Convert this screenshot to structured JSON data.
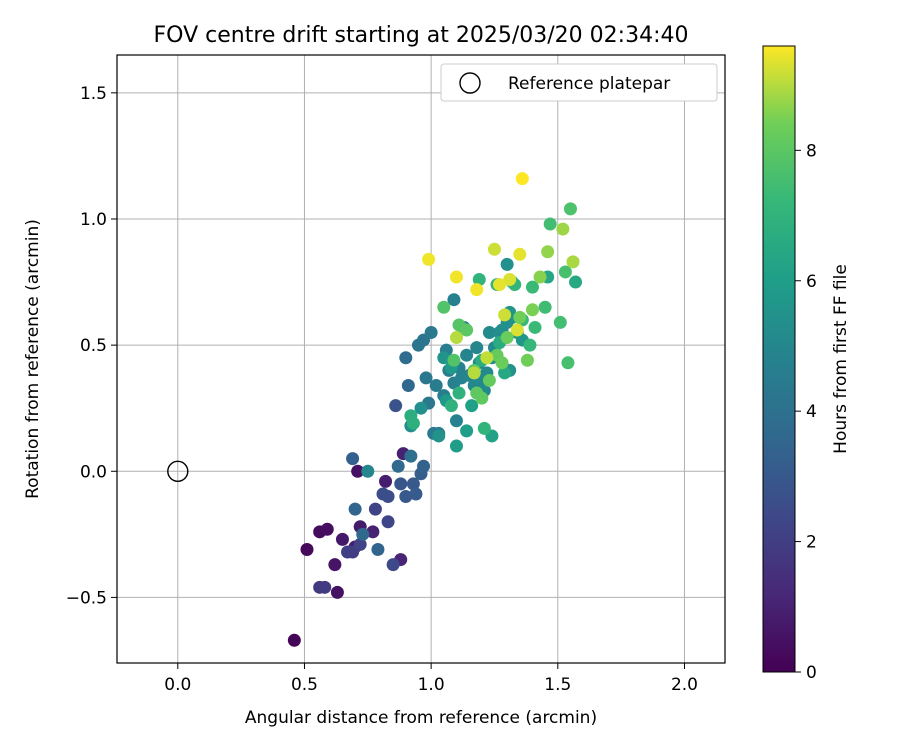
{
  "chart_data": {
    "type": "scatter",
    "title": "FOV centre drift starting at 2025/03/20 02:34:40",
    "xlabel": "Angular distance from reference (arcmin)",
    "ylabel": "Rotation from reference (arcmin)",
    "xlim": [
      -0.24,
      2.16
    ],
    "ylim": [
      -0.76,
      1.65
    ],
    "xticks": [
      0.0,
      0.5,
      1.0,
      1.5,
      2.0
    ],
    "xtick_labels": [
      "0.0",
      "0.5",
      "1.0",
      "1.5",
      "2.0"
    ],
    "yticks": [
      -0.5,
      0.0,
      0.5,
      1.0,
      1.5
    ],
    "ytick_labels": [
      "−0.5",
      "0.0",
      "0.5",
      "1.0",
      "1.5"
    ],
    "grid": true,
    "legend": {
      "position": "top-right",
      "entries": [
        {
          "label": "Reference platepar",
          "marker": "open-circle"
        }
      ]
    },
    "reference_point": {
      "x": 0.0,
      "y": 0.0
    },
    "colorbar": {
      "label": "Hours from first FF file",
      "colormap": "viridis",
      "range": [
        0,
        9.6
      ],
      "ticks": [
        0,
        2,
        4,
        6,
        8
      ],
      "tick_labels": [
        "0",
        "2",
        "4",
        "6",
        "8"
      ]
    },
    "points": [
      {
        "x": 0.46,
        "y": -0.67,
        "c": 0.1
      },
      {
        "x": 0.51,
        "y": -0.31,
        "c": 0.2
      },
      {
        "x": 0.56,
        "y": -0.24,
        "c": 0.3
      },
      {
        "x": 0.59,
        "y": -0.23,
        "c": 0.4
      },
      {
        "x": 0.63,
        "y": -0.48,
        "c": 0.5
      },
      {
        "x": 0.62,
        "y": -0.37,
        "c": 0.6
      },
      {
        "x": 0.65,
        "y": -0.27,
        "c": 0.7
      },
      {
        "x": 0.71,
        "y": 0.0,
        "c": 0.5
      },
      {
        "x": 0.72,
        "y": -0.22,
        "c": 0.8
      },
      {
        "x": 0.7,
        "y": -0.3,
        "c": 0.9
      },
      {
        "x": 0.77,
        "y": -0.24,
        "c": 1.0
      },
      {
        "x": 0.82,
        "y": -0.04,
        "c": 0.9
      },
      {
        "x": 0.88,
        "y": -0.35,
        "c": 1.1
      },
      {
        "x": 0.89,
        "y": 0.07,
        "c": 1.0
      },
      {
        "x": 0.56,
        "y": -0.46,
        "c": 1.8
      },
      {
        "x": 0.58,
        "y": -0.46,
        "c": 1.9
      },
      {
        "x": 0.67,
        "y": -0.32,
        "c": 2.0
      },
      {
        "x": 0.69,
        "y": -0.32,
        "c": 2.0
      },
      {
        "x": 0.72,
        "y": -0.29,
        "c": 2.2
      },
      {
        "x": 0.78,
        "y": -0.15,
        "c": 2.2
      },
      {
        "x": 0.83,
        "y": -0.2,
        "c": 2.3
      },
      {
        "x": 0.85,
        "y": -0.37,
        "c": 2.4
      },
      {
        "x": 0.81,
        "y": -0.09,
        "c": 2.6
      },
      {
        "x": 0.83,
        "y": -0.1,
        "c": 2.6
      },
      {
        "x": 0.86,
        "y": 0.26,
        "c": 2.8
      },
      {
        "x": 0.88,
        "y": -0.05,
        "c": 2.9
      },
      {
        "x": 0.9,
        "y": -0.1,
        "c": 3.0
      },
      {
        "x": 0.93,
        "y": -0.05,
        "c": 3.0
      },
      {
        "x": 0.94,
        "y": -0.09,
        "c": 3.1
      },
      {
        "x": 0.96,
        "y": -0.01,
        "c": 3.2
      },
      {
        "x": 0.69,
        "y": 0.05,
        "c": 3.3
      },
      {
        "x": 0.7,
        "y": -0.15,
        "c": 3.5
      },
      {
        "x": 0.73,
        "y": -0.25,
        "c": 3.6
      },
      {
        "x": 0.79,
        "y": -0.31,
        "c": 3.5
      },
      {
        "x": 0.91,
        "y": 0.34,
        "c": 3.6
      },
      {
        "x": 0.87,
        "y": 0.02,
        "c": 3.7
      },
      {
        "x": 0.9,
        "y": 0.45,
        "c": 3.8
      },
      {
        "x": 0.92,
        "y": 0.06,
        "c": 4.0
      },
      {
        "x": 0.97,
        "y": 0.02,
        "c": 3.4
      },
      {
        "x": 0.95,
        "y": 0.5,
        "c": 4.2
      },
      {
        "x": 0.97,
        "y": 0.52,
        "c": 4.2
      },
      {
        "x": 0.99,
        "y": 0.27,
        "c": 4.3
      },
      {
        "x": 0.98,
        "y": 0.37,
        "c": 4.3
      },
      {
        "x": 1.0,
        "y": 0.55,
        "c": 4.4
      },
      {
        "x": 1.01,
        "y": 0.15,
        "c": 4.4
      },
      {
        "x": 1.02,
        "y": 0.34,
        "c": 4.5
      },
      {
        "x": 1.03,
        "y": 0.15,
        "c": 4.5
      },
      {
        "x": 1.05,
        "y": 0.3,
        "c": 4.6
      },
      {
        "x": 1.06,
        "y": 0.48,
        "c": 4.6
      },
      {
        "x": 1.07,
        "y": 0.4,
        "c": 4.6
      },
      {
        "x": 1.09,
        "y": 0.35,
        "c": 4.7
      },
      {
        "x": 1.09,
        "y": 0.68,
        "c": 4.7
      },
      {
        "x": 1.1,
        "y": 0.2,
        "c": 4.8
      },
      {
        "x": 1.11,
        "y": 0.41,
        "c": 4.8
      },
      {
        "x": 1.12,
        "y": 0.37,
        "c": 4.8
      },
      {
        "x": 1.13,
        "y": 0.57,
        "c": 4.9
      },
      {
        "x": 1.14,
        "y": 0.46,
        "c": 4.9
      },
      {
        "x": 1.15,
        "y": 0.38,
        "c": 4.9
      },
      {
        "x": 1.17,
        "y": 0.34,
        "c": 5.0
      },
      {
        "x": 1.18,
        "y": 0.49,
        "c": 5.0
      },
      {
        "x": 1.19,
        "y": 0.43,
        "c": 5.0
      },
      {
        "x": 1.2,
        "y": 0.36,
        "c": 5.1
      },
      {
        "x": 1.21,
        "y": 0.32,
        "c": 5.1
      },
      {
        "x": 1.22,
        "y": 0.39,
        "c": 5.1
      },
      {
        "x": 1.23,
        "y": 0.55,
        "c": 5.2
      },
      {
        "x": 1.24,
        "y": 0.45,
        "c": 5.2
      },
      {
        "x": 1.25,
        "y": 0.49,
        "c": 5.2
      },
      {
        "x": 1.27,
        "y": 0.55,
        "c": 5.3
      },
      {
        "x": 1.28,
        "y": 0.56,
        "c": 5.3
      },
      {
        "x": 1.3,
        "y": 0.59,
        "c": 5.4
      },
      {
        "x": 1.3,
        "y": 0.82,
        "c": 5.4
      },
      {
        "x": 1.31,
        "y": 0.4,
        "c": 5.5
      },
      {
        "x": 1.32,
        "y": 0.61,
        "c": 5.5
      },
      {
        "x": 1.31,
        "y": 0.63,
        "c": 5.6
      },
      {
        "x": 1.34,
        "y": 0.55,
        "c": 5.6
      },
      {
        "x": 1.36,
        "y": 0.52,
        "c": 5.7
      },
      {
        "x": 0.75,
        "y": 0.0,
        "c": 5.0
      },
      {
        "x": 0.92,
        "y": 0.18,
        "c": 5.3
      },
      {
        "x": 0.96,
        "y": 0.25,
        "c": 5.4
      },
      {
        "x": 1.03,
        "y": 0.14,
        "c": 5.5
      },
      {
        "x": 1.05,
        "y": 0.45,
        "c": 5.6
      },
      {
        "x": 1.06,
        "y": 0.28,
        "c": 5.8
      },
      {
        "x": 1.08,
        "y": 0.41,
        "c": 5.8
      },
      {
        "x": 1.1,
        "y": 0.1,
        "c": 5.9
      },
      {
        "x": 1.14,
        "y": 0.16,
        "c": 6.0
      },
      {
        "x": 1.16,
        "y": 0.26,
        "c": 6.1
      },
      {
        "x": 1.24,
        "y": 0.14,
        "c": 6.2
      },
      {
        "x": 1.32,
        "y": 0.75,
        "c": 6.3
      },
      {
        "x": 1.46,
        "y": 0.77,
        "c": 6.4
      },
      {
        "x": 1.57,
        "y": 0.75,
        "c": 6.5
      },
      {
        "x": 1.29,
        "y": 0.39,
        "c": 6.5
      },
      {
        "x": 1.2,
        "y": 0.44,
        "c": 6.6
      },
      {
        "x": 1.27,
        "y": 0.51,
        "c": 6.6
      },
      {
        "x": 0.92,
        "y": 0.22,
        "c": 6.7
      },
      {
        "x": 0.93,
        "y": 0.19,
        "c": 6.8
      },
      {
        "x": 1.08,
        "y": 0.26,
        "c": 6.9
      },
      {
        "x": 1.11,
        "y": 0.31,
        "c": 6.9
      },
      {
        "x": 1.19,
        "y": 0.76,
        "c": 7.0
      },
      {
        "x": 1.21,
        "y": 0.17,
        "c": 7.0
      },
      {
        "x": 1.26,
        "y": 0.74,
        "c": 7.1
      },
      {
        "x": 1.33,
        "y": 0.74,
        "c": 7.1
      },
      {
        "x": 1.36,
        "y": 0.6,
        "c": 7.2
      },
      {
        "x": 1.39,
        "y": 0.5,
        "c": 7.2
      },
      {
        "x": 1.4,
        "y": 0.73,
        "c": 7.3
      },
      {
        "x": 1.41,
        "y": 0.57,
        "c": 7.3
      },
      {
        "x": 1.45,
        "y": 0.65,
        "c": 7.4
      },
      {
        "x": 1.47,
        "y": 0.98,
        "c": 7.5
      },
      {
        "x": 1.51,
        "y": 0.59,
        "c": 7.5
      },
      {
        "x": 1.53,
        "y": 0.79,
        "c": 7.6
      },
      {
        "x": 1.54,
        "y": 0.43,
        "c": 7.6
      },
      {
        "x": 1.55,
        "y": 1.04,
        "c": 7.7
      },
      {
        "x": 1.05,
        "y": 0.65,
        "c": 7.8
      },
      {
        "x": 1.09,
        "y": 0.44,
        "c": 7.8
      },
      {
        "x": 1.11,
        "y": 0.58,
        "c": 7.9
      },
      {
        "x": 1.14,
        "y": 0.56,
        "c": 8.0
      },
      {
        "x": 1.17,
        "y": 0.4,
        "c": 8.0
      },
      {
        "x": 1.18,
        "y": 0.31,
        "c": 8.1
      },
      {
        "x": 1.2,
        "y": 0.29,
        "c": 8.1
      },
      {
        "x": 1.23,
        "y": 0.36,
        "c": 8.2
      },
      {
        "x": 1.26,
        "y": 0.46,
        "c": 8.2
      },
      {
        "x": 1.28,
        "y": 0.43,
        "c": 8.3
      },
      {
        "x": 1.3,
        "y": 0.53,
        "c": 8.3
      },
      {
        "x": 1.35,
        "y": 0.61,
        "c": 8.4
      },
      {
        "x": 1.38,
        "y": 0.44,
        "c": 8.4
      },
      {
        "x": 1.4,
        "y": 0.64,
        "c": 8.5
      },
      {
        "x": 1.43,
        "y": 0.77,
        "c": 8.6
      },
      {
        "x": 1.46,
        "y": 0.87,
        "c": 8.7
      },
      {
        "x": 1.52,
        "y": 0.96,
        "c": 8.8
      },
      {
        "x": 1.56,
        "y": 0.83,
        "c": 8.9
      },
      {
        "x": 1.1,
        "y": 0.53,
        "c": 9.0
      },
      {
        "x": 1.17,
        "y": 0.39,
        "c": 9.0
      },
      {
        "x": 1.22,
        "y": 0.45,
        "c": 9.1
      },
      {
        "x": 1.25,
        "y": 0.88,
        "c": 9.2
      },
      {
        "x": 1.29,
        "y": 0.62,
        "c": 9.2
      },
      {
        "x": 1.31,
        "y": 0.76,
        "c": 9.3
      },
      {
        "x": 1.34,
        "y": 0.56,
        "c": 9.3
      },
      {
        "x": 1.35,
        "y": 0.86,
        "c": 9.4
      },
      {
        "x": 1.27,
        "y": 0.74,
        "c": 9.4
      },
      {
        "x": 1.18,
        "y": 0.72,
        "c": 9.5
      },
      {
        "x": 1.1,
        "y": 0.77,
        "c": 9.5
      },
      {
        "x": 0.99,
        "y": 0.84,
        "c": 9.5
      },
      {
        "x": 1.36,
        "y": 1.16,
        "c": 9.6
      }
    ]
  }
}
